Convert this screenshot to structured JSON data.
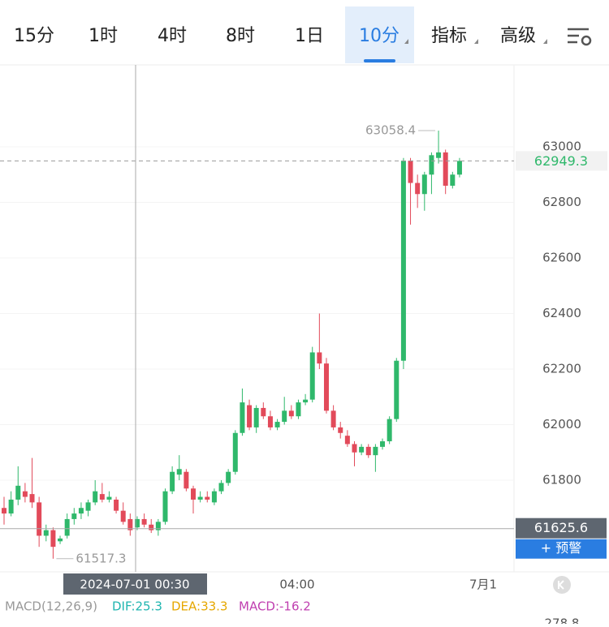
{
  "tabs": [
    "15分",
    "1时",
    "4时",
    "8时",
    "1日",
    "10分",
    "指标",
    "高级"
  ],
  "chart_data": {
    "type": "candlestick",
    "open": [
      61700,
      61680,
      61730,
      61760,
      61750,
      61720,
      61600,
      61620,
      61580,
      61600,
      61660,
      61680,
      61690,
      61720,
      61750,
      61730,
      61730,
      61690,
      61660,
      61630,
      61660,
      61640,
      61620,
      61650,
      61760,
      61820,
      61830,
      61770,
      61730,
      61740,
      61720,
      61760,
      61790,
      61830,
      61970,
      62070,
      61990,
      62060,
      62030,
      61990,
      62010,
      62050,
      62030,
      62080,
      62090,
      62260,
      62220,
      62050,
      61990,
      61960,
      61930,
      61900,
      61920,
      61890,
      61920,
      61940,
      62020,
      62230,
      62950,
      62870,
      62830,
      62900,
      62960,
      62980,
      62860,
      62900
    ],
    "high": [
      61740,
      61760,
      61850,
      61790,
      61880,
      61740,
      61640,
      61630,
      61600,
      61680,
      61700,
      61720,
      61730,
      61800,
      61790,
      61760,
      61740,
      61720,
      61680,
      61670,
      61680,
      61660,
      61660,
      61770,
      61850,
      61890,
      61840,
      61780,
      61760,
      61760,
      61770,
      61800,
      61840,
      61980,
      62130,
      62090,
      62070,
      62080,
      62050,
      62020,
      62100,
      62070,
      62090,
      62110,
      62280,
      62400,
      62240,
      62070,
      62010,
      61980,
      61940,
      61930,
      61930,
      61930,
      61950,
      62030,
      62240,
      62960,
      62960,
      62900,
      62910,
      62980,
      63058.4,
      62990,
      62910,
      62960
    ],
    "low": [
      61640,
      61670,
      61710,
      61720,
      61700,
      61560,
      61580,
      61517.3,
      61570,
      61590,
      61640,
      61660,
      61670,
      61710,
      61720,
      61720,
      61680,
      61640,
      61600,
      61620,
      61630,
      61610,
      61600,
      61640,
      61750,
      61800,
      61760,
      61680,
      61720,
      61720,
      61710,
      61750,
      61780,
      61820,
      61960,
      61980,
      61970,
      62020,
      61980,
      61980,
      62000,
      62020,
      62020,
      62070,
      62080,
      62200,
      62040,
      61980,
      61950,
      61920,
      61850,
      61890,
      61880,
      61830,
      61910,
      61930,
      62010,
      62200,
      62720,
      62780,
      62770,
      62830,
      62940,
      62830,
      62850,
      62890
    ],
    "close": [
      61680,
      61730,
      61780,
      61740,
      61720,
      61600,
      61620,
      61560,
      61590,
      61660,
      61680,
      61700,
      61720,
      61760,
      61730,
      61740,
      61690,
      61650,
      61620,
      61660,
      61640,
      61620,
      61650,
      61760,
      61830,
      61840,
      61770,
      61730,
      61740,
      61730,
      61760,
      61790,
      61830,
      61970,
      62080,
      61990,
      62060,
      62030,
      61990,
      62010,
      62050,
      62030,
      62080,
      62090,
      62260,
      62220,
      62050,
      61990,
      61970,
      61930,
      61900,
      61920,
      61890,
      61920,
      61940,
      62020,
      62230,
      62950,
      62870,
      62830,
      62900,
      62970,
      62980,
      62860,
      62900,
      62949.3
    ],
    "up_color": "#2fb86b",
    "down_color": "#e24a5a",
    "ylim": [
      61470,
      63295
    ],
    "yticks": [
      61800,
      62000,
      62200,
      62400,
      62600,
      62800,
      63000
    ],
    "grid": true,
    "x_labels": [
      "04:00",
      "7月1"
    ],
    "max_label": 63058.4,
    "min_label": 61517.3,
    "last_price": 62949.3,
    "crosshair": {
      "x_label": "2024-07-01 00:30",
      "y_value": 61625.6
    },
    "alert_button": "+ 预警",
    "macd": {
      "name": "MACD(12,26,9)",
      "dif": "DIF:25.3",
      "dea": "DEA:33.3",
      "macd": "MACD:-16.2"
    },
    "lower_axis_top": 278.8
  }
}
